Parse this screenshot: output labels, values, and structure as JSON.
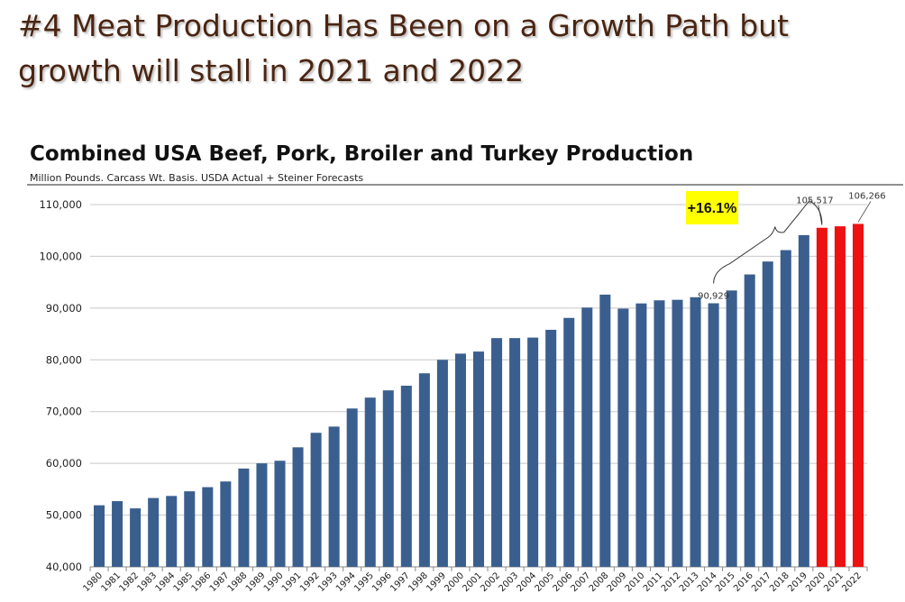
{
  "slide": {
    "title_line1": "#4 Meat Production Has Been on a Growth Path but",
    "title_line2": "growth will stall in 2021 and 2022"
  },
  "colors": {
    "actual_bar": "#3a5f8f",
    "forecast_bar": "#ee1111",
    "callout_fill": "#ffff00",
    "title_color": "#4a2512"
  },
  "chart_data": {
    "type": "bar",
    "title": "Combined USA Beef, Pork, Broiler and Turkey Production",
    "subtitle": "Million Pounds.  Carcass Wt. Basis.  USDA Actual + Steiner Forecasts",
    "ylim": [
      40000,
      110000
    ],
    "yticks": [
      40000,
      50000,
      60000,
      70000,
      80000,
      90000,
      100000,
      110000
    ],
    "ytick_labels": [
      "40,000",
      "50,000",
      "60,000",
      "70,000",
      "80,000",
      "90,000",
      "100,000",
      "110,000"
    ],
    "grid": true,
    "categories": [
      "1980",
      "1981",
      "1982",
      "1983",
      "1984",
      "1985",
      "1986",
      "1987",
      "1988",
      "1989",
      "1990",
      "1991",
      "1992",
      "1993",
      "1994",
      "1995",
      "1996",
      "1997",
      "1998",
      "1999",
      "2000",
      "2001",
      "2002",
      "2003",
      "2004",
      "2005",
      "2006",
      "2007",
      "2008",
      "2009",
      "2010",
      "2011",
      "2012",
      "2013",
      "2014",
      "2015",
      "2016",
      "2017",
      "2018",
      "2019",
      "2020",
      "2021",
      "2022"
    ],
    "values": [
      51900,
      52700,
      51300,
      53300,
      53700,
      54600,
      55400,
      56500,
      59000,
      60000,
      60500,
      63100,
      65900,
      67100,
      70600,
      72700,
      74100,
      75000,
      77400,
      80000,
      81200,
      81600,
      84200,
      84200,
      84300,
      85800,
      88100,
      90100,
      92600,
      89900,
      90900,
      91500,
      91600,
      92100,
      90929,
      93400,
      96500,
      99000,
      101200,
      104100,
      105517,
      105800,
      106266
    ],
    "forecast_from": "2020",
    "data_labels": [
      {
        "category": "2014",
        "text": "90,929"
      },
      {
        "category": "2020",
        "text": "105,517"
      },
      {
        "category": "2022",
        "text": "106,266"
      }
    ],
    "callout": {
      "text": "+16.1%",
      "from": "2014",
      "to": "2020"
    }
  }
}
